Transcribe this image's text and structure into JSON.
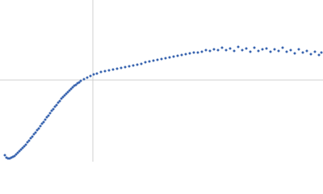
{
  "chart_data": {
    "type": "scatter",
    "xlim": [
      0,
      400
    ],
    "ylim": [
      0,
      200
    ],
    "xticks": [
      115
    ],
    "yticks": [
      101
    ],
    "grid": true,
    "color": "#3a65b0",
    "x": [
      6,
      8,
      10,
      12,
      14,
      16,
      18,
      20,
      22,
      24,
      26,
      28,
      30,
      32,
      34,
      36,
      38,
      40,
      42,
      44,
      46,
      48,
      50,
      52,
      54,
      56,
      58,
      60,
      62,
      64,
      66,
      68,
      70,
      72,
      74,
      76,
      78,
      80,
      82,
      84,
      86,
      88,
      90,
      92,
      94,
      96,
      98,
      100,
      104,
      108,
      112,
      116,
      120,
      125,
      130,
      135,
      140,
      145,
      150,
      155,
      160,
      165,
      170,
      175,
      180,
      185,
      190,
      195,
      200,
      205,
      210,
      215,
      220,
      225,
      230,
      235,
      240,
      245,
      250,
      255,
      260,
      265,
      270,
      275,
      280,
      285,
      290,
      295,
      300,
      305,
      310,
      315,
      320,
      325,
      330,
      335,
      340,
      345,
      350,
      355,
      360,
      365,
      370,
      375,
      380,
      385,
      390,
      395,
      398
    ],
    "y": [
      8,
      5,
      4,
      4,
      5,
      6,
      7,
      9,
      11,
      13,
      15,
      17,
      19,
      21,
      24,
      26,
      29,
      31,
      34,
      36,
      39,
      41,
      44,
      47,
      49,
      52,
      55,
      57,
      60,
      63,
      65,
      68,
      70,
      73,
      75,
      78,
      80,
      82,
      84,
      86,
      88,
      90,
      92,
      94,
      95,
      97,
      98,
      100,
      102,
      104,
      106,
      108,
      109,
      111,
      112,
      113,
      114,
      115,
      116,
      117,
      118,
      119,
      120,
      121,
      123,
      124,
      125,
      126,
      127,
      128,
      129,
      130,
      131,
      132,
      133,
      134,
      135,
      135,
      136,
      138,
      137,
      139,
      138,
      141,
      138,
      140,
      137,
      142,
      138,
      140,
      136,
      141,
      137,
      139,
      140,
      136,
      139,
      137,
      141,
      136,
      138,
      134,
      139,
      135,
      137,
      133,
      136,
      132,
      135
    ]
  }
}
